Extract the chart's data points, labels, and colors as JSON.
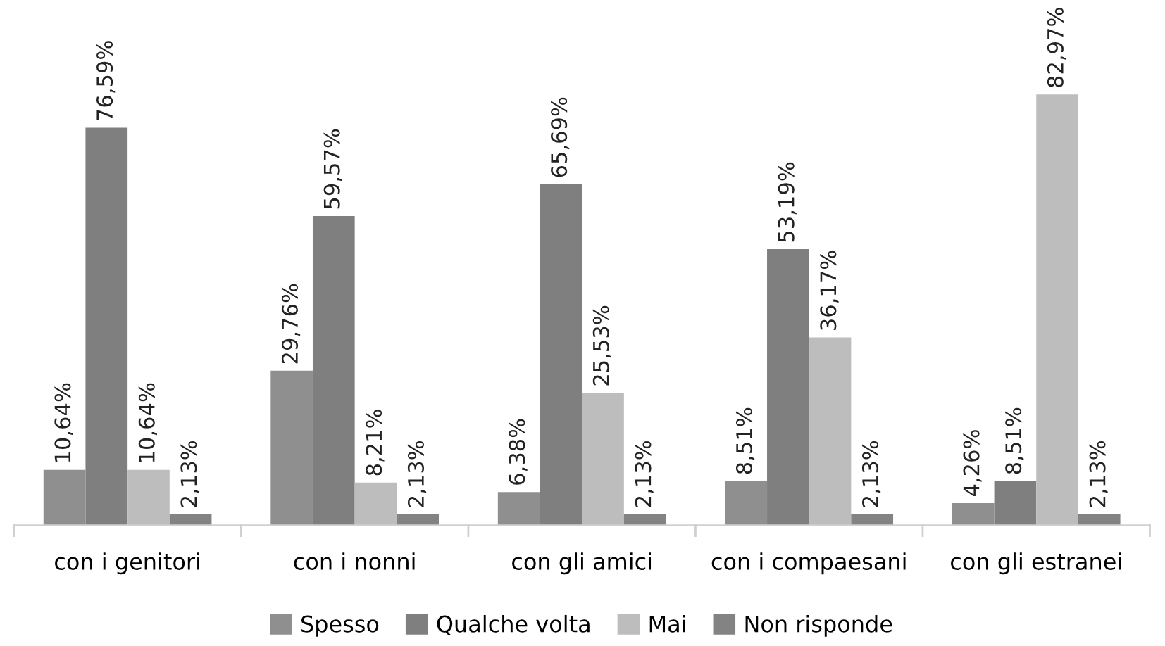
{
  "chart_data": {
    "type": "bar",
    "categories": [
      "con i genitori",
      "con i nonni",
      "con gli amici",
      "con i compaesani",
      "con gli estranei"
    ],
    "series": [
      {
        "name": "Spesso",
        "color": "#8f8f8f",
        "values": [
          10.64,
          29.76,
          6.38,
          8.51,
          4.26
        ],
        "value_labels": [
          "10,64%",
          "29,76%",
          "6,38%",
          "8,51%",
          "4,26%"
        ]
      },
      {
        "name": "Qualche volta",
        "color": "#7f7f7f",
        "values": [
          76.59,
          59.57,
          65.69,
          53.19,
          8.51
        ],
        "value_labels": [
          "76,59%",
          "59,57%",
          "65,69%",
          "53,19%",
          "8,51%"
        ]
      },
      {
        "name": "Mai",
        "color": "#bdbdbd",
        "values": [
          10.64,
          8.21,
          25.53,
          36.17,
          82.97
        ],
        "value_labels": [
          "10,64%",
          "8,21%",
          "25,53%",
          "36,17%",
          "82,97%"
        ]
      },
      {
        "name": "Non risponde",
        "color": "#838383",
        "values": [
          2.13,
          2.13,
          2.13,
          2.13,
          2.13
        ],
        "value_labels": [
          "2,13%",
          "2,13%",
          "2,13%",
          "2,13%",
          "2,13%"
        ]
      }
    ],
    "legend": "bottom",
    "grid": false,
    "tick_labels": "x"
  }
}
